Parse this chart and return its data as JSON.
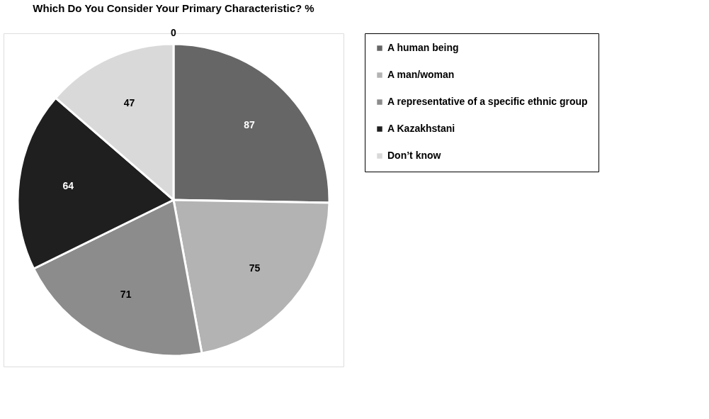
{
  "chart_data": {
    "type": "pie",
    "title": "Which Do You Consider Your Primary Characteristic? %",
    "categories": [
      "A human being",
      "A man/woman",
      "A representative of a specific ethnic group",
      "A Kazakhstani",
      "Don’t know"
    ],
    "values": [
      87,
      75,
      71,
      64,
      47
    ],
    "colors": [
      "#666666",
      "#b3b3b3",
      "#8c8c8c",
      "#1f1f1f",
      "#d9d9d9"
    ],
    "data_labels": true,
    "legend": "right",
    "annotations": [
      "0"
    ]
  }
}
